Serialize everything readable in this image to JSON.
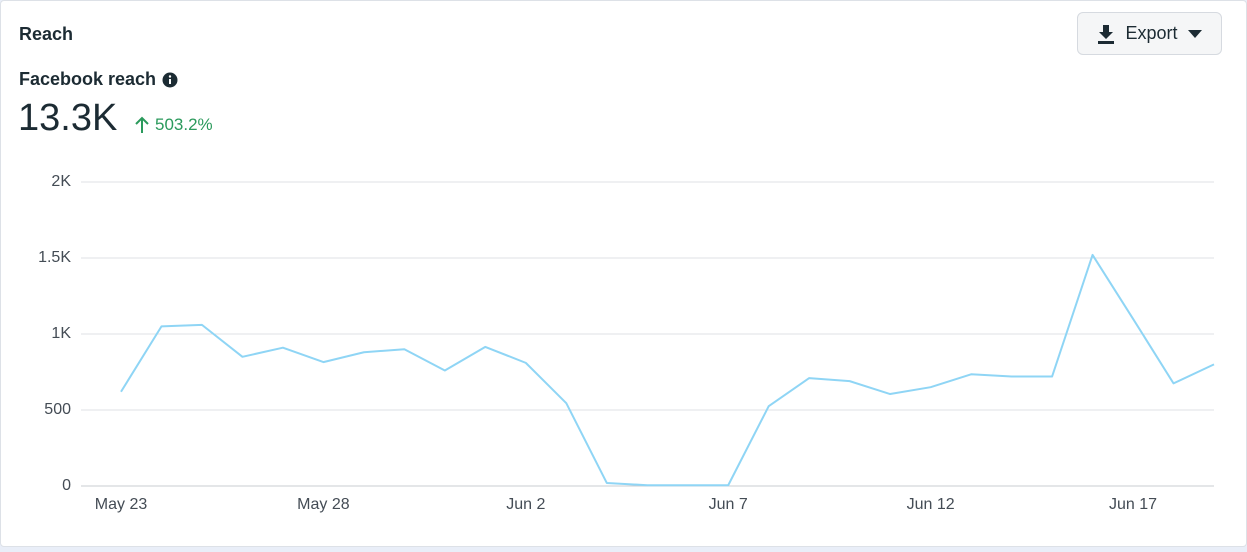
{
  "header": {
    "title": "Reach",
    "export": "Export"
  },
  "metric": {
    "label": "Facebook reach",
    "value": "13.3K",
    "change": "503.2%"
  },
  "chart_data": {
    "type": "line",
    "categories": [
      "May 23",
      null,
      null,
      null,
      null,
      "May 28",
      null,
      null,
      null,
      null,
      "Jun 2",
      null,
      null,
      null,
      null,
      "Jun 7",
      null,
      null,
      null,
      null,
      "Jun 12",
      null,
      null,
      null,
      null,
      "Jun 17",
      null,
      null
    ],
    "values": [
      620,
      1050,
      1060,
      850,
      910,
      815,
      880,
      900,
      760,
      915,
      810,
      545,
      20,
      5,
      5,
      5,
      525,
      710,
      690,
      605,
      650,
      735,
      720,
      720,
      1520,
      1100,
      675,
      800
    ],
    "color": "#8fd5f5",
    "ylim": [
      0,
      2000
    ],
    "yticks": [
      0,
      500,
      {
        "value": 1000,
        "label": "1K"
      },
      {
        "value": 1500,
        "label": "1.5K"
      },
      {
        "value": 2000,
        "label": "2K"
      }
    ],
    "grid": true
  }
}
